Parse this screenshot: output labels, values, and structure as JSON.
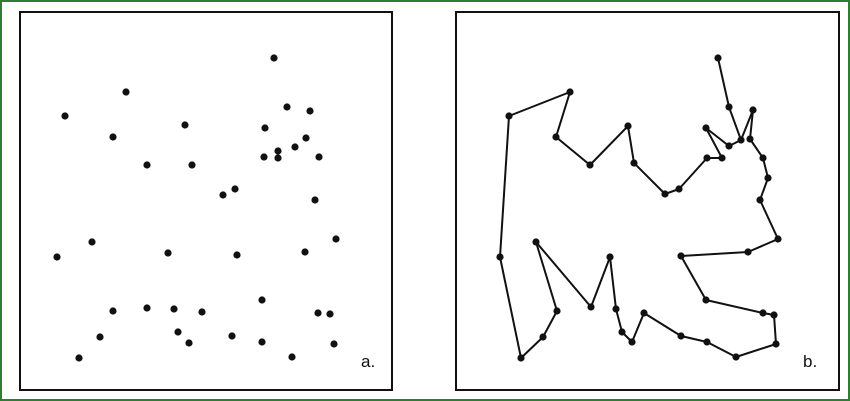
{
  "panels": [
    {
      "label": "a.",
      "points": [
        [
          274,
          58
        ],
        [
          126,
          92
        ],
        [
          65,
          116
        ],
        [
          287,
          107
        ],
        [
          310,
          111
        ],
        [
          185,
          125
        ],
        [
          265,
          128
        ],
        [
          113,
          137
        ],
        [
          306,
          138
        ],
        [
          295,
          147
        ],
        [
          278,
          151
        ],
        [
          264,
          157
        ],
        [
          278,
          158
        ],
        [
          319,
          157
        ],
        [
          147,
          165
        ],
        [
          192,
          165
        ],
        [
          235,
          189
        ],
        [
          223,
          195
        ],
        [
          315,
          200
        ],
        [
          92,
          242
        ],
        [
          336,
          239
        ],
        [
          168,
          253
        ],
        [
          237,
          255
        ],
        [
          305,
          252
        ],
        [
          57,
          257
        ],
        [
          262,
          300
        ],
        [
          113,
          311
        ],
        [
          147,
          308
        ],
        [
          174,
          309
        ],
        [
          202,
          312
        ],
        [
          318,
          313
        ],
        [
          330,
          314
        ],
        [
          178,
          332
        ],
        [
          100,
          337
        ],
        [
          232,
          336
        ],
        [
          189,
          343
        ],
        [
          262,
          342
        ],
        [
          334,
          344
        ],
        [
          292,
          357
        ],
        [
          79,
          358
        ]
      ]
    },
    {
      "label": "b.",
      "tour": [
        [
          570,
          92
        ],
        [
          556,
          137
        ],
        [
          590,
          165
        ],
        [
          628,
          126
        ],
        [
          634,
          163
        ],
        [
          665,
          194
        ],
        [
          679,
          189
        ],
        [
          707,
          158
        ],
        [
          722,
          158
        ],
        [
          706,
          128
        ],
        [
          729,
          146
        ],
        [
          741,
          140
        ],
        [
          753,
          110
        ],
        [
          750,
          139
        ],
        [
          763,
          158
        ],
        [
          768,
          178
        ],
        [
          760,
          200
        ],
        [
          778,
          239
        ],
        [
          748,
          252
        ],
        [
          681,
          256
        ],
        [
          706,
          300
        ],
        [
          763,
          313
        ],
        [
          774,
          315
        ],
        [
          776,
          344
        ],
        [
          736,
          357
        ],
        [
          707,
          342
        ],
        [
          681,
          336
        ],
        [
          644,
          313
        ],
        [
          632,
          342
        ],
        [
          622,
          332
        ],
        [
          616,
          309
        ],
        [
          610,
          257
        ],
        [
          591,
          307
        ],
        [
          536,
          242
        ],
        [
          557,
          311
        ],
        [
          543,
          337
        ],
        [
          521,
          358
        ],
        [
          500,
          257
        ],
        [
          509,
          116
        ],
        [
          570,
          92
        ]
      ],
      "branch": [
        [
          718,
          58
        ],
        [
          729,
          107
        ],
        [
          741,
          140
        ]
      ]
    }
  ],
  "colors": {
    "frame": "#2e7d32",
    "ink": "#111111"
  }
}
